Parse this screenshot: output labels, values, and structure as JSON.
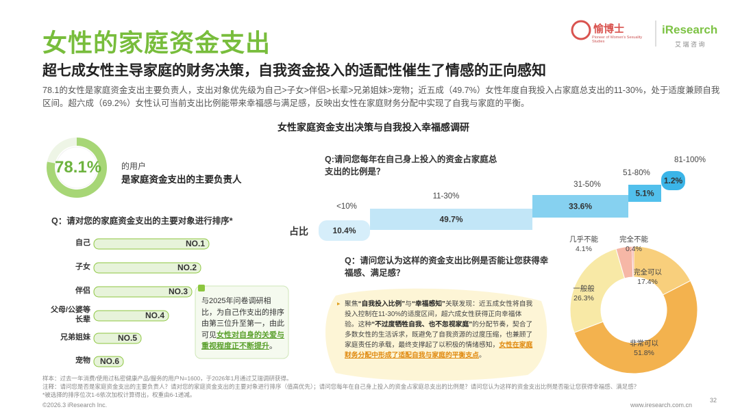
{
  "header": {
    "title": "女性的家庭资金支出",
    "subtitle": "超七成女性主导家庭的财务决策，自我资金投入的适配性催生了情感的正向感知",
    "intro": "78.1的女性是家庭资金支出主要负责人，支出对象优先级为自己>子女>伴侣>长辈>兄弟姐妹>宠物；近五成（49.7%）女性年度自我投入占家庭总支出的11-30%，处于适度兼顾自我区间。超六成（69.2%）女性认可当前支出比例能带来幸福感与满足感，反映出女性在家庭财务分配中实现了自我与家庭的平衡。"
  },
  "logo": {
    "brand": "愉博士",
    "brand_tagline": "Pioneer of Women's Sexuality Studies",
    "partner": "iResearch",
    "partner_cn": "艾 瑞 咨 询"
  },
  "section_title": "女性家庭资金支出决策与自我投入幸福感调研",
  "responsible": {
    "value": 78.1,
    "value_label": "78.1%",
    "line1": "的用户",
    "line2": "是家庭资金支出的主要负责人"
  },
  "ranking": {
    "question": "Q：请对您的家庭资金支出的主要对象进行排序*",
    "items": [
      {
        "label": "自己",
        "rank": "NO.1"
      },
      {
        "label": "子女",
        "rank": "NO.2"
      },
      {
        "label": "伴侣",
        "rank": "NO.3"
      },
      {
        "label": "父母/公婆等长辈",
        "rank": "NO.4"
      },
      {
        "label": "兄弟姐妹",
        "rank": "NO.5"
      },
      {
        "label": "宠物",
        "rank": "NO.6"
      }
    ],
    "note": [
      "与2025年问卷调研相比，为自己作支出的排序由第三位升至第一，由此可见",
      "女性对自身的关爱与重视程度正不断提升",
      "。"
    ]
  },
  "ratio_chart": {
    "type": "step",
    "question": "Q:请问您每年在自己身上投入的资金占家庭总支出的比例是？",
    "axis_label": "占比",
    "categories": [
      "<10%",
      "11-30%",
      "31-50%",
      "51-80%",
      "81-100%"
    ],
    "values": [
      10.4,
      49.7,
      33.6,
      5.1,
      1.2
    ],
    "value_labels": [
      "10.4%",
      "49.7%",
      "33.6%",
      "5.1%",
      "1.2%"
    ],
    "colors": [
      "#d6eefa",
      "#c2e6f7",
      "#86d1f0",
      "#52c0ec",
      "#3bb5e8"
    ]
  },
  "satisfaction_chart": {
    "type": "pie",
    "question": "Q：请问您认为这样的资金支出比例是否能让您获得幸福感、满足感？",
    "categories": [
      "完全可以",
      "非常可以",
      "一般般",
      "几乎不能",
      "完全不能"
    ],
    "values": [
      17.4,
      51.8,
      26.3,
      4.1,
      0.4
    ],
    "value_labels": [
      "17.4%",
      "51.8%",
      "26.3%",
      "4.1%",
      "0.4%"
    ],
    "colors": [
      "#f8cf7c",
      "#f3b24e",
      "#f8e9a6",
      "#f6b7a6",
      "#ee8e86"
    ]
  },
  "finding": {
    "segments": [
      {
        "text": "聚焦",
        "style": "normal"
      },
      {
        "text": "“自我投入比例”",
        "style": "bold"
      },
      {
        "text": "与",
        "style": "normal"
      },
      {
        "text": "“幸福感知”",
        "style": "bold"
      },
      {
        "text": "关联发现：近五成女性将自我投入控制在11-30%的适度区间，超六成女性获得正向幸福体验。这种",
        "style": "normal"
      },
      {
        "text": "“不过度牺牲自我、也不忽视家庭”",
        "style": "bold"
      },
      {
        "text": "的分配节奏，契合了多数女性的生活诉求，既避免了自我资源的过度压缩，也兼顾了家庭责任的承载，最终支撑起了以积极的情绪感知，",
        "style": "normal"
      },
      {
        "text": "女性在家庭财务分配中形成了适配自我与家庭的平衡支点",
        "style": "highlight"
      },
      {
        "text": "。",
        "style": "normal"
      }
    ]
  },
  "footer": {
    "sample": "样本：过去一年消费/使用过私密健康产品/服务的用户N=1600，于2026年1月通过艾瑞调研获得。",
    "note": "注释：请问您是否是家庭资金支出的主要负责人？请对您的家庭资金支出的主要对象进行排序（值高优先）；请问您每年在自己身上投入的资金占家庭总支出的比例是？请问您认为这样的资金支出比例是否能让您获得幸福感、满足感？",
    "note2": "*被选择的排序位次1-6依次加权计算得出，权重由6-1递减。",
    "copyright": "©2026.3 iResearch Inc.",
    "website": "www.iresearch.com.cn",
    "page": "32"
  }
}
